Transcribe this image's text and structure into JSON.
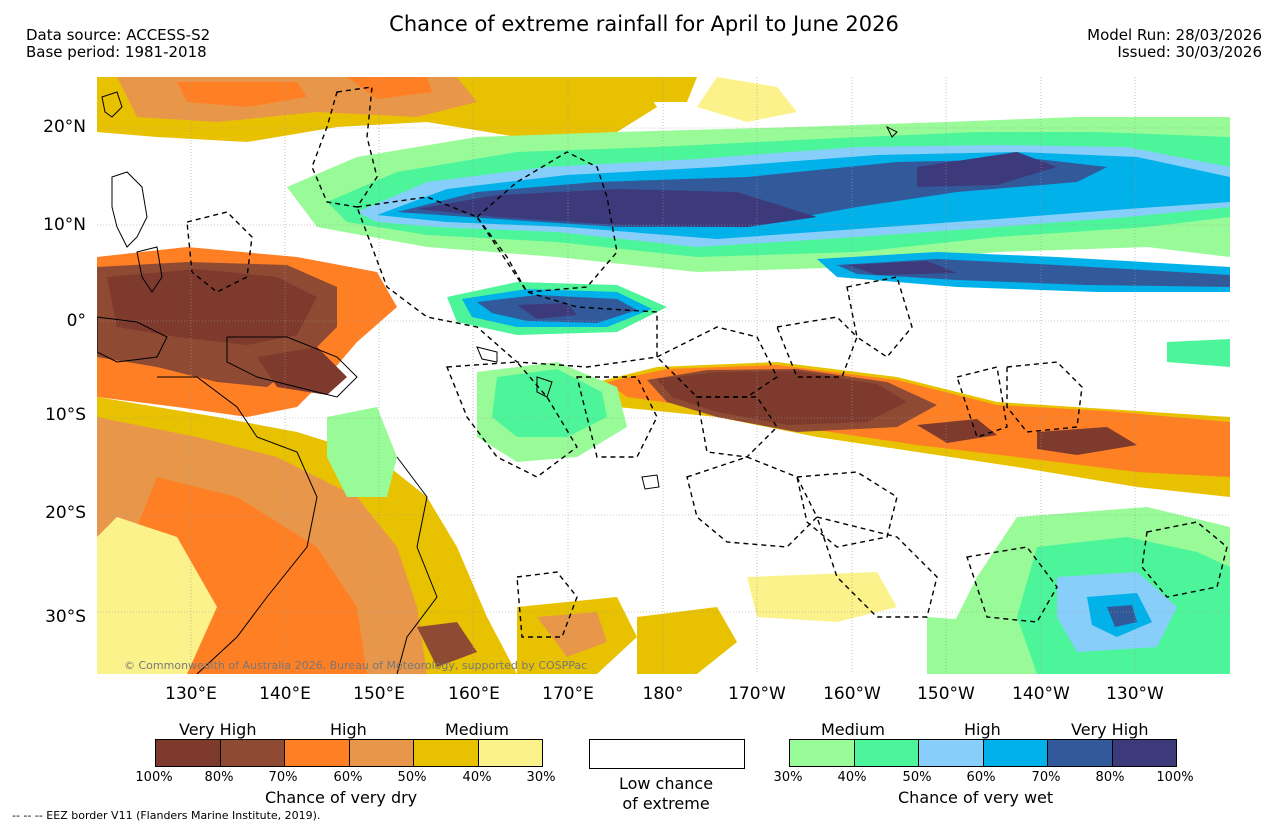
{
  "header": {
    "title": "Chance of extreme rainfall for April to June 2026",
    "data_source": "Data source: ACCESS-S2",
    "base_period": "Base period: 1981-2018",
    "model_run": "Model Run: 28/03/2026",
    "issued": "Issued: 30/03/2026"
  },
  "map": {
    "lat_labels": [
      "20°N",
      "10°N",
      "0°",
      "10°S",
      "20°S",
      "30°S"
    ],
    "lon_labels": [
      "130°E",
      "140°E",
      "150°E",
      "160°E",
      "170°E",
      "180°",
      "170°W",
      "160°W",
      "150°W",
      "140°W",
      "130°W"
    ],
    "copyright": "© Commonwealth of Australia 2026, Bureau of Meteorology, supported by COSPPac"
  },
  "dry_legend": {
    "levels": [
      "Very High",
      "High",
      "Medium"
    ],
    "ticks": [
      "100%",
      "80%",
      "70%",
      "60%",
      "50%",
      "40%",
      "30%"
    ],
    "colors": [
      "#7f3a2e",
      "#8e4a33",
      "#ff7f24",
      "#e8974a",
      "#e8c200",
      "#fcf28c"
    ],
    "title": "Chance of very dry"
  },
  "low_legend": {
    "line1": "Low chance",
    "line2": "of extreme"
  },
  "wet_legend": {
    "levels": [
      "Medium",
      "High",
      "Very High"
    ],
    "ticks": [
      "30%",
      "40%",
      "50%",
      "60%",
      "70%",
      "80%",
      "100%"
    ],
    "colors": [
      "#98fb98",
      "#4cf59a",
      "#87cefa",
      "#00b1ea",
      "#325a9a",
      "#3d3a7c"
    ],
    "title": "Chance of very wet"
  },
  "footnote": "--  --  -- EEZ border V11 (Flanders Marine Institute, 2019)."
}
